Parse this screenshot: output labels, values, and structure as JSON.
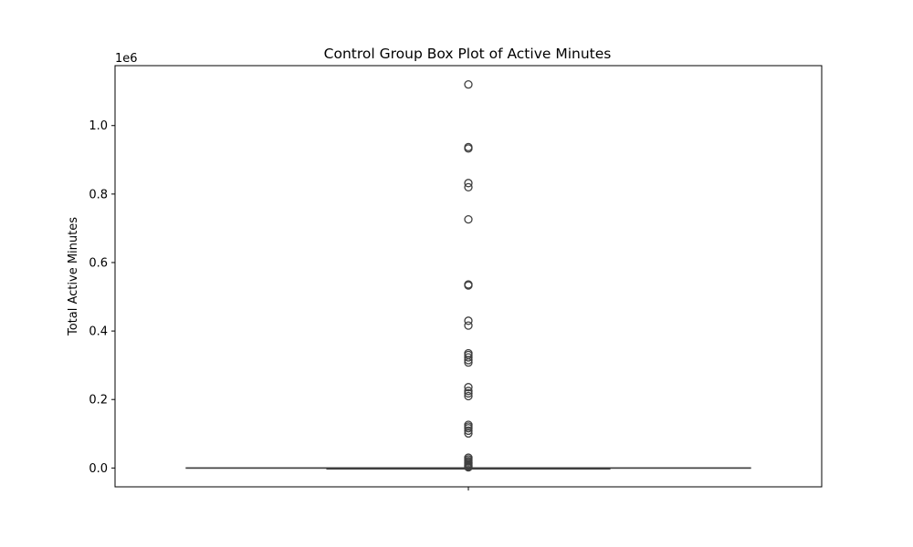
{
  "chart_data": {
    "type": "box",
    "title": "Control Group Box Plot of Active Minutes",
    "xlabel": "",
    "ylabel": "Total Active Minutes",
    "y_offset_label": "1e6",
    "y_scale": 1000000,
    "ylim": [
      -55000,
      1175000
    ],
    "yticks": [
      0.0,
      0.2,
      0.4,
      0.6,
      0.8,
      1.0
    ],
    "ytick_labels": [
      "0.0",
      "0.2",
      "0.4",
      "0.6",
      "0.8",
      "1.0"
    ],
    "grid": false,
    "legend": "none",
    "box": {
      "whisker_low": 0,
      "q1": 0,
      "median": 0,
      "q3": 0,
      "whisker_high": 0
    },
    "outliers": [
      1120000,
      937000,
      933000,
      832000,
      820000,
      726000,
      536000,
      533000,
      430000,
      416000,
      335000,
      330000,
      323000,
      315000,
      308000,
      236000,
      225000,
      218000,
      210000,
      126000,
      121000,
      116000,
      109000,
      101000,
      30000,
      25000,
      20000,
      16000,
      12000,
      8000,
      5000,
      2000
    ],
    "colors": {
      "box_line": "#3f3f3f",
      "outlier_edge": "#3f3f3f",
      "axis": "#000000"
    }
  }
}
